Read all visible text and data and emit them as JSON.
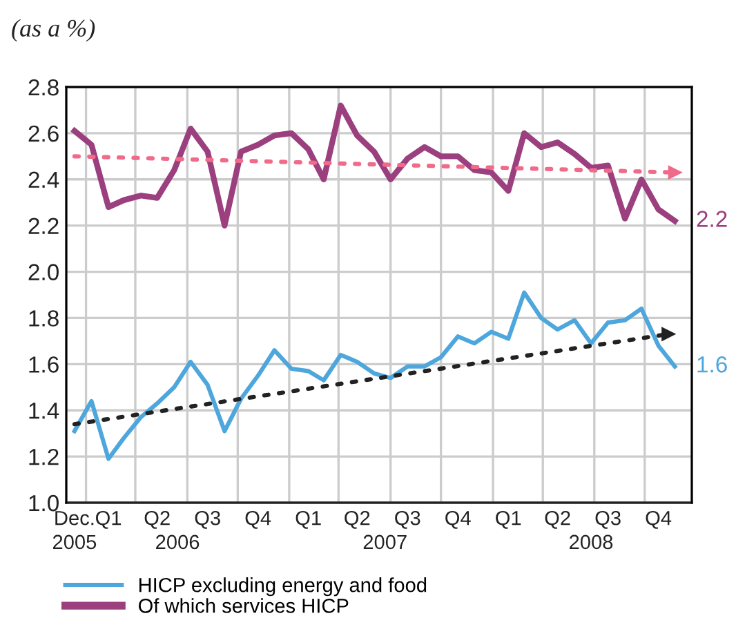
{
  "chart_data": {
    "type": "line",
    "ylabel": "(as a %)",
    "xlim": [
      "2005-11-16",
      "2009-01-01"
    ],
    "xticks": [
      {
        "value": "2005-12-01",
        "label": "Dec."
      },
      {
        "value": "2006-02-01",
        "label": "Q1"
      },
      {
        "value": "2006-05-01",
        "label": "Q2"
      },
      {
        "value": "2006-08-01",
        "label": "Q3"
      },
      {
        "value": "2006-11-01",
        "label": "Q4"
      },
      {
        "value": "2007-02-01",
        "label": "Q1"
      },
      {
        "value": "2007-05-01",
        "label": "Q2"
      },
      {
        "value": "2007-08-01",
        "label": "Q3"
      },
      {
        "value": "2007-11-01",
        "label": "Q4"
      },
      {
        "value": "2008-02-01",
        "label": "Q1"
      },
      {
        "value": "2008-05-01",
        "label": "Q2"
      },
      {
        "value": "2008-08-01",
        "label": "Q3"
      },
      {
        "value": "2008-11-01",
        "label": "Q4"
      },
      {
        "value": "2005-12-22",
        "label": null
      },
      {
        "value": "2006-03-22",
        "label": null
      },
      {
        "value": "2006-06-25",
        "label": null
      },
      {
        "value": "2006-09-25",
        "label": null
      },
      {
        "value": "2006-12-28",
        "label": null
      },
      {
        "value": "2007-03-28",
        "label": null
      },
      {
        "value": "2007-07-01",
        "label": null
      },
      {
        "value": "2007-10-01",
        "label": null
      },
      {
        "value": "2008-01-04",
        "label": null
      },
      {
        "value": "2008-04-04",
        "label": null
      },
      {
        "value": "2008-07-07",
        "label": null
      },
      {
        "value": "2008-10-07",
        "label": null
      }
    ],
    "x2lim": [
      "2005-11-16",
      "2009-01-01"
    ],
    "x2ticks": [
      {
        "value": "2005-12-01",
        "label": "2005"
      },
      {
        "value": "2006-06-07",
        "label": "2006"
      },
      {
        "value": "2007-06-21",
        "label": "2007"
      },
      {
        "value": "2008-07-01",
        "label": "2008"
      }
    ],
    "ylim": [
      1.0,
      2.8
    ],
    "yticks": [
      {
        "value": 1.0,
        "label": "1.0"
      },
      1.2,
      1.4,
      1.6,
      1.8,
      {
        "value": 2.0,
        "label": "2.0"
      },
      2.2,
      2.4,
      2.6,
      2.8
    ],
    "grid": true,
    "legend": "bottom",
    "x": [
      "2005-12",
      "2006-01",
      "2006-02",
      "2006-03",
      "2006-04",
      "2006-05",
      "2006-06",
      "2006-07",
      "2006-08",
      "2006-09",
      "2006-10",
      "2006-11",
      "2006-12",
      "2007-01",
      "2007-02",
      "2007-03",
      "2007-04",
      "2007-05",
      "2007-06",
      "2007-07",
      "2007-08",
      "2007-09",
      "2007-10",
      "2007-11",
      "2007-12",
      "2008-01",
      "2008-02",
      "2008-03",
      "2008-04",
      "2008-05",
      "2008-06",
      "2008-07",
      "2008-08",
      "2008-09",
      "2008-10",
      "2008-11",
      "2008-12"
    ],
    "series": [
      {
        "name": "HICP excluding energy and food",
        "color": "#4da6dc",
        "values": [
          1.31,
          1.44,
          1.19,
          1.28,
          1.37,
          1.43,
          1.5,
          1.61,
          1.51,
          1.31,
          1.45,
          1.55,
          1.66,
          1.58,
          1.57,
          1.53,
          1.64,
          1.61,
          1.56,
          1.54,
          1.59,
          1.59,
          1.63,
          1.72,
          1.69,
          1.74,
          1.71,
          1.91,
          1.8,
          1.75,
          1.79,
          1.69,
          1.78,
          1.79,
          1.84,
          1.68,
          1.59
        ]
      },
      {
        "name": "Of which services HICP",
        "color": "#9b3f7e",
        "values": [
          2.61,
          2.55,
          2.28,
          2.31,
          2.33,
          2.32,
          2.44,
          2.62,
          2.52,
          2.2,
          2.52,
          2.55,
          2.59,
          2.6,
          2.53,
          2.4,
          2.72,
          2.59,
          2.52,
          2.4,
          2.49,
          2.54,
          2.5,
          2.5,
          2.44,
          2.43,
          2.35,
          2.6,
          2.54,
          2.56,
          2.51,
          2.45,
          2.46,
          2.23,
          2.4,
          2.27,
          2.22
        ]
      },
      {
        "color": "#f06a8a",
        "x": [
          "2005-12",
          "2008-12"
        ],
        "values": [
          2.5,
          2.43
        ],
        "line_style": "dotted",
        "marker": "triangle"
      },
      {
        "color": "#222222",
        "x": [
          "2005-12",
          "2008-11-19"
        ],
        "values": [
          1.34,
          1.73
        ],
        "line_style": "dotted",
        "marker": "triangle"
      }
    ],
    "annotations": [
      {
        "text": "2.2",
        "x": "2008-12",
        "y": 2.22
      },
      {
        "text": "1.6",
        "x": "2008-12",
        "y": 1.59
      }
    ]
  }
}
